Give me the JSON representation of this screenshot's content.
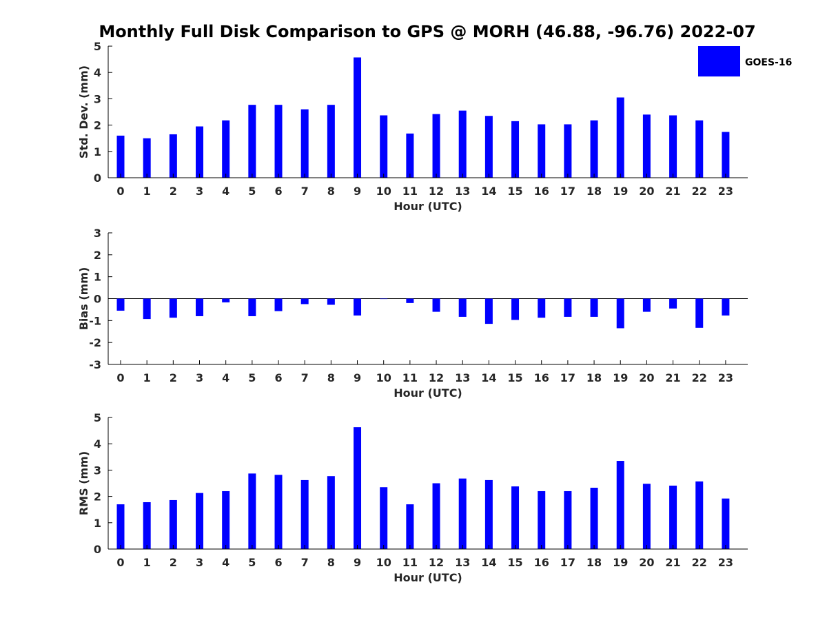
{
  "figure": {
    "title": "Monthly Full Disk Comparison to GPS @ MORH (46.88, -96.76) 2022-07",
    "legend": {
      "label": "GOES-16",
      "color": "#0000ff",
      "placement": "top-right"
    }
  },
  "chart_data": [
    {
      "type": "bar",
      "categories": [
        "0",
        "1",
        "2",
        "3",
        "4",
        "5",
        "6",
        "7",
        "8",
        "9",
        "10",
        "11",
        "12",
        "13",
        "14",
        "15",
        "16",
        "17",
        "18",
        "19",
        "20",
        "21",
        "22",
        "23"
      ],
      "series": [
        {
          "name": "GOES-16",
          "values": [
            1.6,
            1.5,
            1.65,
            1.95,
            2.18,
            2.77,
            2.77,
            2.6,
            2.77,
            4.57,
            2.37,
            1.68,
            2.42,
            2.55,
            2.35,
            2.15,
            2.03,
            2.03,
            2.18,
            3.05,
            2.4,
            2.37,
            2.18,
            1.74
          ]
        }
      ],
      "xlabel": "Hour (UTC)",
      "ylabel": "Std. Dev. (mm)",
      "ylim": [
        0,
        5
      ],
      "yticks": [
        "0",
        "1",
        "2",
        "3",
        "4",
        "5"
      ],
      "color": "#0000ff"
    },
    {
      "type": "bar",
      "categories": [
        "0",
        "1",
        "2",
        "3",
        "4",
        "5",
        "6",
        "7",
        "8",
        "9",
        "10",
        "11",
        "12",
        "13",
        "14",
        "15",
        "16",
        "17",
        "18",
        "19",
        "20",
        "21",
        "22",
        "23"
      ],
      "series": [
        {
          "name": "GOES-16",
          "values": [
            -0.55,
            -0.93,
            -0.87,
            -0.8,
            -0.17,
            -0.8,
            -0.57,
            -0.25,
            -0.28,
            -0.77,
            0.0,
            -0.2,
            -0.6,
            -0.83,
            -1.15,
            -0.97,
            -0.87,
            -0.83,
            -0.83,
            -1.35,
            -0.6,
            -0.45,
            -1.33,
            -0.77
          ]
        }
      ],
      "xlabel": "Hour (UTC)",
      "ylabel": "Bias (mm)",
      "ylim": [
        -3,
        3
      ],
      "yticks": [
        "-3",
        "-2",
        "-1",
        "0",
        "1",
        "2",
        "3"
      ],
      "color": "#0000ff"
    },
    {
      "type": "bar",
      "categories": [
        "0",
        "1",
        "2",
        "3",
        "4",
        "5",
        "6",
        "7",
        "8",
        "9",
        "10",
        "11",
        "12",
        "13",
        "14",
        "15",
        "16",
        "17",
        "18",
        "19",
        "20",
        "21",
        "22",
        "23"
      ],
      "series": [
        {
          "name": "GOES-16",
          "values": [
            1.7,
            1.78,
            1.86,
            2.13,
            2.2,
            2.87,
            2.82,
            2.62,
            2.77,
            4.63,
            2.35,
            1.7,
            2.5,
            2.68,
            2.62,
            2.38,
            2.2,
            2.2,
            2.33,
            3.35,
            2.48,
            2.41,
            2.57,
            1.92
          ]
        }
      ],
      "xlabel": "Hour (UTC)",
      "ylabel": "RMS (mm)",
      "ylim": [
        0,
        5
      ],
      "yticks": [
        "0",
        "1",
        "2",
        "3",
        "4",
        "5"
      ],
      "color": "#0000ff"
    }
  ]
}
